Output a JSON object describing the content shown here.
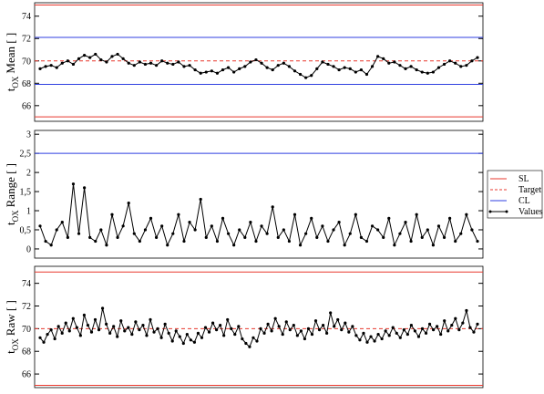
{
  "legend": [
    {
      "name": "SL",
      "color": "#e8392f",
      "dash": false,
      "dots": false
    },
    {
      "name": "Target",
      "color": "#e8392f",
      "dash": true,
      "dots": false
    },
    {
      "name": "CL",
      "color": "#2f3fe0",
      "dash": false,
      "dots": false
    },
    {
      "name": "Values",
      "color": "#000000",
      "dash": false,
      "dots": true
    }
  ],
  "chart_data": [
    {
      "type": "line",
      "ylabel_parts": [
        "t",
        "OX",
        "Mean [ ]"
      ],
      "ylim": [
        64.6,
        75.2
      ],
      "yticks": [
        66,
        68,
        70,
        72,
        74
      ],
      "limits": {
        "SL": [
          65,
          75
        ],
        "Target": [
          70
        ],
        "CL": [
          67.9,
          72.1
        ]
      },
      "values": [
        69.3,
        69.5,
        69.6,
        69.4,
        69.8,
        70.0,
        69.7,
        70.2,
        70.5,
        70.3,
        70.6,
        70.1,
        69.9,
        70.4,
        70.6,
        70.2,
        69.8,
        69.6,
        69.9,
        69.7,
        69.8,
        69.6,
        70.0,
        69.8,
        69.7,
        69.9,
        69.5,
        69.6,
        69.2,
        68.9,
        69.0,
        69.1,
        68.9,
        69.2,
        69.4,
        69.0,
        69.3,
        69.5,
        69.9,
        70.1,
        69.8,
        69.4,
        69.2,
        69.6,
        69.8,
        69.5,
        69.1,
        68.8,
        68.5,
        68.7,
        69.3,
        69.9,
        69.7,
        69.5,
        69.2,
        69.4,
        69.3,
        69.0,
        69.2,
        68.8,
        69.5,
        70.4,
        70.2,
        69.8,
        69.9,
        69.6,
        69.3,
        69.5,
        69.2,
        69.0,
        68.9,
        69.0,
        69.4,
        69.7,
        70.0,
        69.8,
        69.5,
        69.6,
        70.0,
        70.3
      ]
    },
    {
      "type": "line",
      "ylabel_parts": [
        "t",
        "OX",
        "Range [ ]"
      ],
      "ylim": [
        -0.24,
        3.1
      ],
      "yticks": [
        0,
        {
          "value": 0.5,
          "label": "0,5"
        },
        1,
        {
          "value": 1.5,
          "label": "1,5"
        },
        2,
        {
          "value": 2.5,
          "label": "2,5"
        },
        3
      ],
      "limits": {
        "CL": [
          2.5
        ]
      },
      "values": [
        0.6,
        0.2,
        0.1,
        0.5,
        0.7,
        0.3,
        1.7,
        0.4,
        1.6,
        0.3,
        0.2,
        0.5,
        0.1,
        0.9,
        0.3,
        0.6,
        1.2,
        0.4,
        0.2,
        0.5,
        0.8,
        0.3,
        0.6,
        0.1,
        0.4,
        0.9,
        0.2,
        0.7,
        0.5,
        1.3,
        0.3,
        0.6,
        0.2,
        0.8,
        0.4,
        0.1,
        0.5,
        0.3,
        0.7,
        0.2,
        0.6,
        0.4,
        1.1,
        0.3,
        0.5,
        0.2,
        0.9,
        0.1,
        0.4,
        0.8,
        0.3,
        0.6,
        0.2,
        0.5,
        0.7,
        0.1,
        0.4,
        0.9,
        0.3,
        0.2,
        0.6,
        0.5,
        0.3,
        0.8,
        0.1,
        0.4,
        0.7,
        0.2,
        0.9,
        0.3,
        0.5,
        0.1,
        0.6,
        0.3,
        0.8,
        0.2,
        0.4,
        0.9,
        0.5,
        0.2
      ]
    },
    {
      "type": "line",
      "ylabel_parts": [
        "t",
        "OX",
        "Raw [ ]"
      ],
      "ylim": [
        64.8,
        75.5
      ],
      "yticks": [
        66,
        68,
        70,
        72,
        74
      ],
      "limits": {
        "SL": [
          65,
          75
        ],
        "Target": [
          70
        ]
      },
      "values": [
        69.2,
        68.8,
        69.5,
        69.9,
        69.1,
        70.2,
        69.6,
        70.5,
        69.8,
        70.9,
        70.1,
        69.4,
        71.2,
        70.3,
        69.7,
        70.8,
        69.9,
        71.8,
        70.4,
        69.6,
        70.2,
        69.3,
        70.7,
        69.8,
        70.1,
        69.5,
        70.6,
        69.9,
        70.3,
        69.4,
        70.8,
        69.7,
        70.0,
        69.2,
        70.4,
        69.6,
        68.9,
        69.8,
        69.3,
        68.7,
        69.5,
        69.0,
        68.8,
        69.6,
        69.2,
        70.1,
        69.7,
        70.5,
        69.9,
        70.3,
        69.4,
        70.8,
        70.0,
        69.5,
        70.2,
        69.1,
        68.7,
        68.4,
        69.2,
        68.9,
        70.0,
        69.6,
        70.4,
        69.8,
        70.9,
        70.2,
        69.5,
        70.6,
        69.9,
        70.3,
        69.4,
        69.8,
        69.1,
        70.0,
        69.5,
        70.7,
        69.9,
        70.3,
        69.6,
        71.4,
        70.2,
        70.8,
        69.9,
        70.5,
        69.7,
        70.2,
        69.4,
        69.0,
        69.6,
        68.8,
        69.3,
        68.9,
        69.5,
        69.1,
        69.8,
        69.4,
        70.1,
        69.6,
        69.2,
        69.9,
        69.5,
        70.3,
        69.8,
        69.3,
        70.0,
        69.6,
        70.4,
        69.9,
        70.2,
        69.5,
        70.7,
        69.8,
        70.3,
        70.9,
        69.9,
        70.5,
        71.6,
        70.1,
        69.7,
        70.4
      ]
    }
  ]
}
